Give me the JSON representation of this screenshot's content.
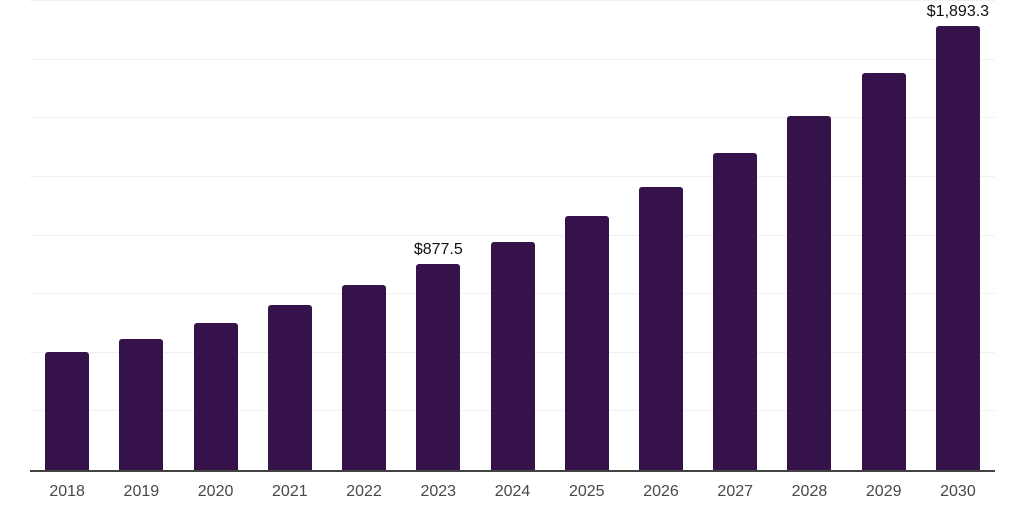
{
  "chart_data": {
    "type": "bar",
    "title": "",
    "xlabel": "",
    "ylabel": "",
    "categories": [
      "2018",
      "2019",
      "2020",
      "2021",
      "2022",
      "2023",
      "2024",
      "2025",
      "2026",
      "2027",
      "2028",
      "2029",
      "2030"
    ],
    "values": [
      505,
      559,
      628,
      705,
      789,
      877.5,
      974,
      1085,
      1208,
      1350,
      1510,
      1692,
      1893.3
    ],
    "data_labels": {
      "2023": "$877.5",
      "2030": "$1,893.3"
    },
    "ylim": [
      0,
      2000
    ],
    "gridline_step": 250,
    "grid": true,
    "legend_position": "none",
    "bar_color": "#351249",
    "axis_line_color": "#424242",
    "gridline_color": "#f0f0f0",
    "data_label_color": "#111111",
    "tick_label_color": "#484848"
  }
}
